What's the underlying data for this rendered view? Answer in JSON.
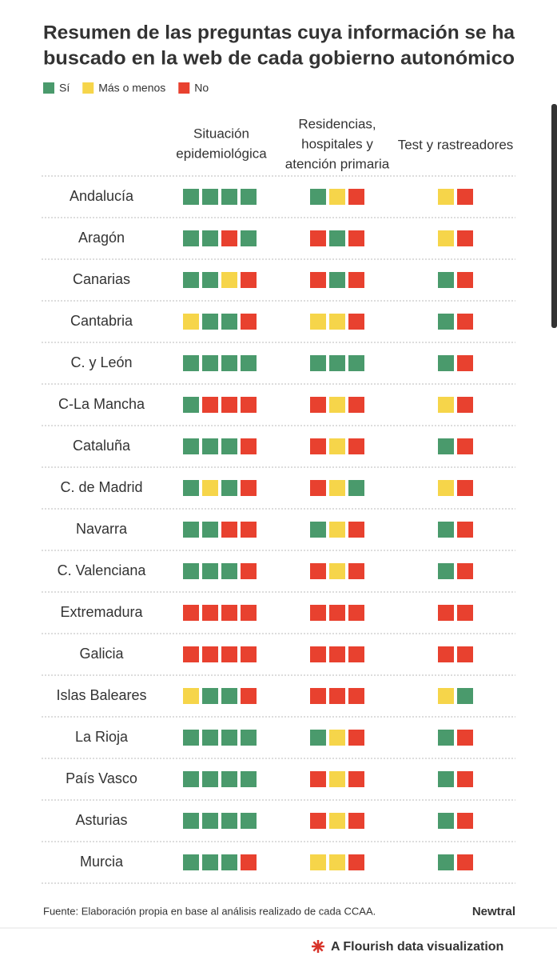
{
  "title": [
    "Resumen de las preguntas cuya información se ha",
    "buscado en la web de cada gobierno autonómico"
  ],
  "legend": [
    {
      "label": "Sí",
      "color": "#4a9a6c"
    },
    {
      "label": "Más o menos",
      "color": "#f6d54a"
    },
    {
      "label": "No",
      "color": "#e8412f"
    }
  ],
  "columns": [
    [
      "Situación",
      "epidemiológica"
    ],
    [
      "Residencias,",
      "hospitales y",
      "atención primaria"
    ],
    [
      "Test y rastreadores"
    ]
  ],
  "rows": [
    {
      "name": "Andalucía",
      "cells": [
        [
          0,
          0,
          0,
          0
        ],
        [
          0,
          1,
          2
        ],
        [
          1,
          2
        ]
      ]
    },
    {
      "name": "Aragón",
      "cells": [
        [
          0,
          0,
          2,
          0
        ],
        [
          2,
          0,
          2
        ],
        [
          1,
          2
        ]
      ]
    },
    {
      "name": "Canarias",
      "cells": [
        [
          0,
          0,
          1,
          2
        ],
        [
          2,
          0,
          2
        ],
        [
          0,
          2
        ]
      ]
    },
    {
      "name": "Cantabria",
      "cells": [
        [
          1,
          0,
          0,
          2
        ],
        [
          1,
          1,
          2
        ],
        [
          0,
          2
        ]
      ]
    },
    {
      "name": "C. y León",
      "cells": [
        [
          0,
          0,
          0,
          0
        ],
        [
          0,
          0,
          0
        ],
        [
          0,
          2
        ]
      ]
    },
    {
      "name": "C-La Mancha",
      "cells": [
        [
          0,
          2,
          2,
          2
        ],
        [
          2,
          1,
          2
        ],
        [
          1,
          2
        ]
      ]
    },
    {
      "name": "Cataluña",
      "cells": [
        [
          0,
          0,
          0,
          2
        ],
        [
          2,
          1,
          2
        ],
        [
          0,
          2
        ]
      ]
    },
    {
      "name": "C. de Madrid",
      "cells": [
        [
          0,
          1,
          0,
          2
        ],
        [
          2,
          1,
          0
        ],
        [
          1,
          2
        ]
      ]
    },
    {
      "name": "Navarra",
      "cells": [
        [
          0,
          0,
          2,
          2
        ],
        [
          0,
          1,
          2
        ],
        [
          0,
          2
        ]
      ]
    },
    {
      "name": "C. Valenciana",
      "cells": [
        [
          0,
          0,
          0,
          2
        ],
        [
          2,
          1,
          2
        ],
        [
          0,
          2
        ]
      ]
    },
    {
      "name": "Extremadura",
      "cells": [
        [
          2,
          2,
          2,
          2
        ],
        [
          2,
          2,
          2
        ],
        [
          2,
          2
        ]
      ]
    },
    {
      "name": "Galicia",
      "cells": [
        [
          2,
          2,
          2,
          2
        ],
        [
          2,
          2,
          2
        ],
        [
          2,
          2
        ]
      ]
    },
    {
      "name": "Islas Baleares",
      "cells": [
        [
          1,
          0,
          0,
          2
        ],
        [
          2,
          2,
          2
        ],
        [
          1,
          0
        ]
      ]
    },
    {
      "name": "La Rioja",
      "cells": [
        [
          0,
          0,
          0,
          0
        ],
        [
          0,
          1,
          2
        ],
        [
          0,
          2
        ]
      ]
    },
    {
      "name": "País Vasco",
      "cells": [
        [
          0,
          0,
          0,
          0
        ],
        [
          2,
          1,
          2
        ],
        [
          0,
          2
        ]
      ]
    },
    {
      "name": "Asturias",
      "cells": [
        [
          0,
          0,
          0,
          0
        ],
        [
          2,
          1,
          2
        ],
        [
          0,
          2
        ]
      ]
    },
    {
      "name": "Murcia",
      "cells": [
        [
          0,
          0,
          0,
          2
        ],
        [
          1,
          1,
          2
        ],
        [
          0,
          2
        ]
      ]
    }
  ],
  "source": "Fuente: Elaboración propia en base al análisis realizado de cada CCAA.",
  "brand": "Newtral",
  "credit": "A Flourish data visualization"
}
